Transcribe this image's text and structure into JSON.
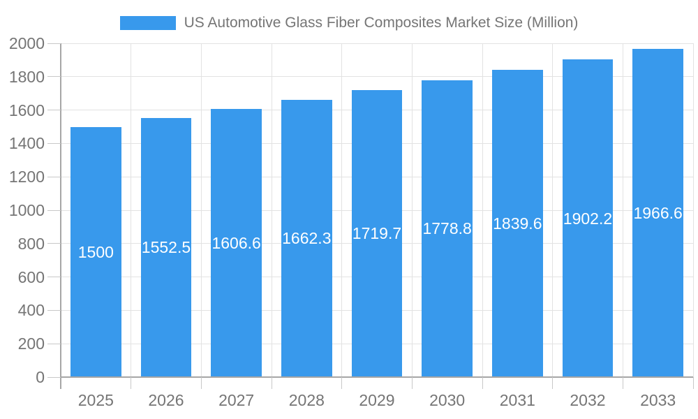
{
  "legend": {
    "label": "US Automotive Glass Fiber Composites Market Size (Million)"
  },
  "chart_data": {
    "type": "bar",
    "title": "US Automotive Glass Fiber Composites Market Size (Million)",
    "categories": [
      "2025",
      "2026",
      "2027",
      "2028",
      "2029",
      "2030",
      "2031",
      "2032",
      "2033"
    ],
    "values": [
      1500,
      1552.5,
      1606.6,
      1662.3,
      1719.7,
      1778.8,
      1839.6,
      1902.2,
      1966.6
    ],
    "value_labels": [
      "1500",
      "1552.5",
      "1606.6",
      "1662.3",
      "1719.7",
      "1778.8",
      "1839.6",
      "1902.2",
      "1966.6"
    ],
    "xlabel": "",
    "ylabel": "",
    "ylim": [
      0,
      2000
    ],
    "y_ticks": [
      0,
      200,
      400,
      600,
      800,
      1000,
      1200,
      1400,
      1600,
      1800,
      2000
    ],
    "grid": true,
    "legend_position": "top-center",
    "bar_fraction": 0.72,
    "colors": {
      "bar": "#3899EC",
      "bar_label_text": "#FFFFFF",
      "axis_text": "#757575",
      "legend_text": "#757575",
      "grid_line": "#E2E2E2",
      "tick_line": "#C8C8C8",
      "axis_line": "#A6A6A6",
      "background": "#FFFFFF"
    }
  }
}
